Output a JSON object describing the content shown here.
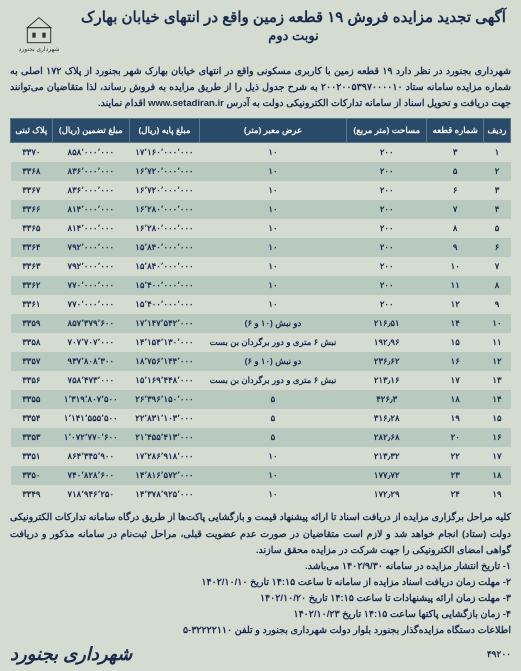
{
  "header": {
    "title": "آگهی تجدید مزایده فروش ۱۹ قطعه زمین واقع در انتهای خیابان بهارک",
    "subtitle": "نوبت دوم",
    "logo_caption": "شهرداری بجنورد"
  },
  "intro": "شهرداری بجنورد در نظر دارد ۱۹ قطعه زمین با کاربری مسکونی واقع در انتهای خیابان بهارک شهر بجنورد از پلاک ۱۷۲ اصلی به شماره مزایده سامانه ستاد ۲۰۰۲۰۰۵۳۹۷۰۰۰۰۱۰ به شرح جدول ذیل را از طریق مزایده به فروش رساند، لذا متقاضیان می‌توانند جهت دریافت و تحویل اسناد از سامانه تدارکات الکترونیکی دولت به آدرس www.setadiran.ir اقدام نمایند.",
  "table": {
    "columns": [
      "ردیف",
      "شماره قطعه",
      "مساحت (متر مربع)",
      "عرض معبر (متر)",
      "مبلغ پایه (ریال)",
      "مبلغ تضمین (ریال)",
      "پلاک ثبتی"
    ],
    "rows": [
      [
        "۱",
        "۳",
        "۲۰۰",
        "۱۰",
        "۱۷٬۱۶۰٬۰۰۰٬۰۰۰",
        "۸۵۸٬۰۰۰٬۰۰۰",
        "۳۳۷۰"
      ],
      [
        "۲",
        "۵",
        "۲۰۰",
        "۱۰",
        "۱۶٬۷۲۰٬۰۰۰٬۰۰۰",
        "۸۳۶٬۰۰۰٬۰۰۰",
        "۳۳۶۸"
      ],
      [
        "۳",
        "۶",
        "۲۰۰",
        "۱۰",
        "۱۶٬۷۲۰٬۰۰۰٬۰۰۰",
        "۸۳۶٬۰۰۰٬۰۰۰",
        "۳۳۶۷"
      ],
      [
        "۴",
        "۷",
        "۲۰۰",
        "۱۰",
        "۱۶٬۲۸۰٬۰۰۰٬۰۰۰",
        "۸۱۴٬۰۰۰٬۰۰۰",
        "۳۳۶۶"
      ],
      [
        "۵",
        "۸",
        "۲۰۰",
        "۱۰",
        "۱۶٬۲۸۰٬۰۰۰٬۰۰۰",
        "۸۱۴٬۰۰۰٬۰۰۰",
        "۳۳۶۵"
      ],
      [
        "۶",
        "۹",
        "۲۰۰",
        "۱۰",
        "۱۵٬۸۴۰٬۰۰۰٬۰۰۰",
        "۷۹۲٬۰۰۰٬۰۰۰",
        "۳۳۶۴"
      ],
      [
        "۷",
        "۱۰",
        "۲۰۰",
        "۱۰",
        "۱۵٬۸۴۰٬۰۰۰٬۰۰۰",
        "۷۹۲٬۰۰۰٬۰۰۰",
        "۳۳۶۳"
      ],
      [
        "۸",
        "۱۱",
        "۲۰۰",
        "۱۰",
        "۱۵٬۴۰۰٬۰۰۰٬۰۰۰",
        "۷۷۰٬۰۰۰٬۰۰۰",
        "۳۳۶۲"
      ],
      [
        "۹",
        "۱۲",
        "۲۰۰",
        "۱۰",
        "۱۵٬۴۰۰٬۰۰۰٬۰۰۰",
        "۷۷۰٬۰۰۰٬۰۰۰",
        "۳۳۶۱"
      ],
      [
        "۱۰",
        "۱۴",
        "۲۱۶٫۵۱",
        "دو نبش (۱۰ و ۶)",
        "۱۷٬۱۴۷٬۵۴۲٬۰۰۰",
        "۸۵۷٬۳۷۹٬۶۰۰",
        "۳۳۵۹"
      ],
      [
        "۱۱",
        "۱۵",
        "۱۹۲٫۹۶",
        "نبش ۶ متری و دور برگردان بن بست",
        "۱۴٬۱۵۴٬۱۳۰٬۰۰۰",
        "۷۰۷٬۷۰۷٬۰۰۰",
        "۳۳۵۸"
      ],
      [
        "۱۲",
        "۱۶",
        "۲۳۶٫۶۲",
        "دو نبش (۱۰ و ۶)",
        "۱۸٬۷۵۶٬۱۴۴٬۰۰۰",
        "۹۳۷٬۸۰۸٬۳۰۰",
        "۳۳۵۷"
      ],
      [
        "۱۳",
        "۱۷",
        "۲۱۳٫۱۶",
        "نبش ۶ متری و دور برگردان بن بست",
        "۱۵٬۱۶۹٬۴۴۸٬۰۰۰",
        "۷۵۸٬۴۷۳٬۰۰۰",
        "۳۳۵۶"
      ],
      [
        "۱۴",
        "۱۸",
        "۴۲۶٫۳",
        "۵",
        "۲۶٬۳۹۶٬۱۵۰٬۰۰۰",
        "۱٬۳۱۹٬۸۰۷٬۵۰۰",
        "۳۳۵۵"
      ],
      [
        "۱۵",
        "۱۹",
        "۳۱۶٫۲۸",
        "۵",
        "۲۲٬۸۳۱٬۱۰۳٬۰۰۰",
        "۱٬۱۴۱٬۵۵۵٬۵۰۰",
        "۳۳۵۴"
      ],
      [
        "۱۶",
        "۲۰",
        "۲۸۲٫۶۸",
        "۵",
        "۲۱٬۴۵۵٬۴۱۳٬۰۰۰",
        "۱٬۰۷۲٬۷۷۰٬۶۰۰",
        "۳۳۵۳"
      ],
      [
        "۱۷",
        "۲۲",
        "۲۱۳٫۳۲",
        "۱۰",
        "۱۷٬۲۸۶٬۹۱۸٬۰۰۰",
        "۸۶۴٬۳۴۵٬۹۰۰",
        "۳۳۵۱"
      ],
      [
        "۱۸",
        "۲۳",
        "۱۷۷٫۷۲",
        "۱۰",
        "۱۴٬۸۱۶٬۵۷۲٬۰۰۰",
        "۷۴۰٬۸۲۸٬۶۰۰",
        "۳۳۵۰"
      ],
      [
        "۱۹",
        "۲۴",
        "۱۷۲٫۲۹",
        "۱۰",
        "۱۴٬۳۷۸٬۹۲۵٬۰۰۰",
        "۷۱۸٬۹۴۶٬۲۵۰",
        "۳۳۴۹"
      ]
    ]
  },
  "footer": {
    "p1": "کلیه مراحل برگزاری مزایده از دریافت اسناد تا ارائه پیشنهاد قیمت و بازگشایی پاکت‌ها از طریق درگاه سامانه تدارکات الکترونیکی دولت (ستاد) انجام خواهد شد و لازم است متقاضیان در صورت عدم عضویت قبلی، مراحل ثبت‌نام در سامانه مذکور و دریافت گواهی امضای الکترونیکی را جهت شرکت در مزایده محقق سازند.",
    "l1": "۱- تاریخ انتشار مزایده در سامانه ۱۴۰۲/۹/۳۰ می‌باشد.",
    "l2": "۲- مهلت زمان دریافت اسناد مزایده از سامانه تا ساعت ۱۴:۱۵ تاریخ ۱۴۰۲/۱۰/۱۰",
    "l3": "۳- مهلت زمان ارائه پیشنهادات تا ساعت ۱۴:۱۵ تاریخ ۱۴۰۲/۱۰/۲۰",
    "l4": "۴- زمان بازگشایی پاکتها ساعت ۱۴:۱۵ تاریخ ۱۴۰۲/۱۰/۲۳",
    "l5": "اطلاعات دستگاه مزایده‌گذار بجنورد بلوار دولت شهرداری بجنورد و تلفن ۳۲۲۲۲۱۱۰-۵",
    "org": "شهرداری بجنورد",
    "ref": "۴۹۲۰۰"
  },
  "colors": {
    "page_bg": "#d4dcd1",
    "header_bg": "#2a4a6a",
    "row_odd": "#d4dcd1",
    "row_even": "#b8cac0",
    "text": "#1a2a4a"
  }
}
